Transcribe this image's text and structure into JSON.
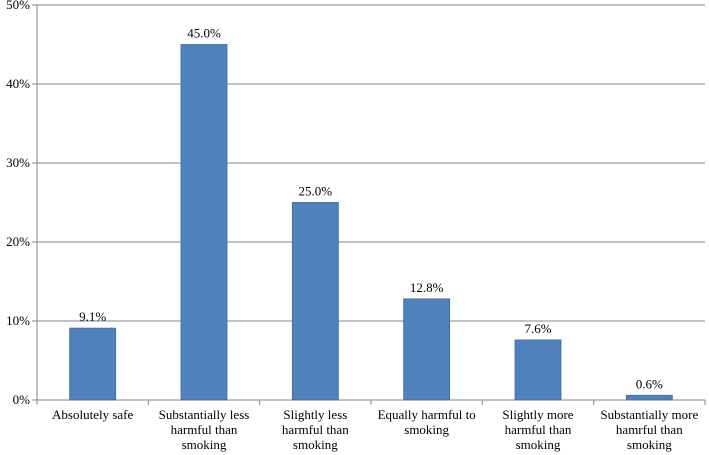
{
  "chart_data": {
    "type": "bar",
    "categories": [
      [
        "Absolutely safe"
      ],
      [
        "Substantially less",
        "harmful than",
        "smoking"
      ],
      [
        "Slightly less",
        "harmful than",
        "smoking"
      ],
      [
        "Equally harmful to",
        "smoking"
      ],
      [
        "Slightly more",
        "harmful than",
        "smoking"
      ],
      [
        "Substantially more",
        "hamrful than",
        "smoking"
      ]
    ],
    "values": [
      9.1,
      45.0,
      25.0,
      12.8,
      7.6,
      0.6
    ],
    "data_labels": [
      "9.1%",
      "45.0%",
      "25.0%",
      "12.8%",
      "7.6%",
      "0.6%"
    ],
    "ylim": [
      0,
      50
    ],
    "yticks": [
      0,
      10,
      20,
      30,
      40,
      50
    ],
    "ytick_labels": [
      "0%",
      "10%",
      "20%",
      "30%",
      "40%",
      "50%"
    ],
    "grid": true,
    "bar_color": "#4F81BD",
    "bar_edge_color": "#3B6A9E",
    "grid_color": "#868686",
    "axis_color": "#868686"
  }
}
